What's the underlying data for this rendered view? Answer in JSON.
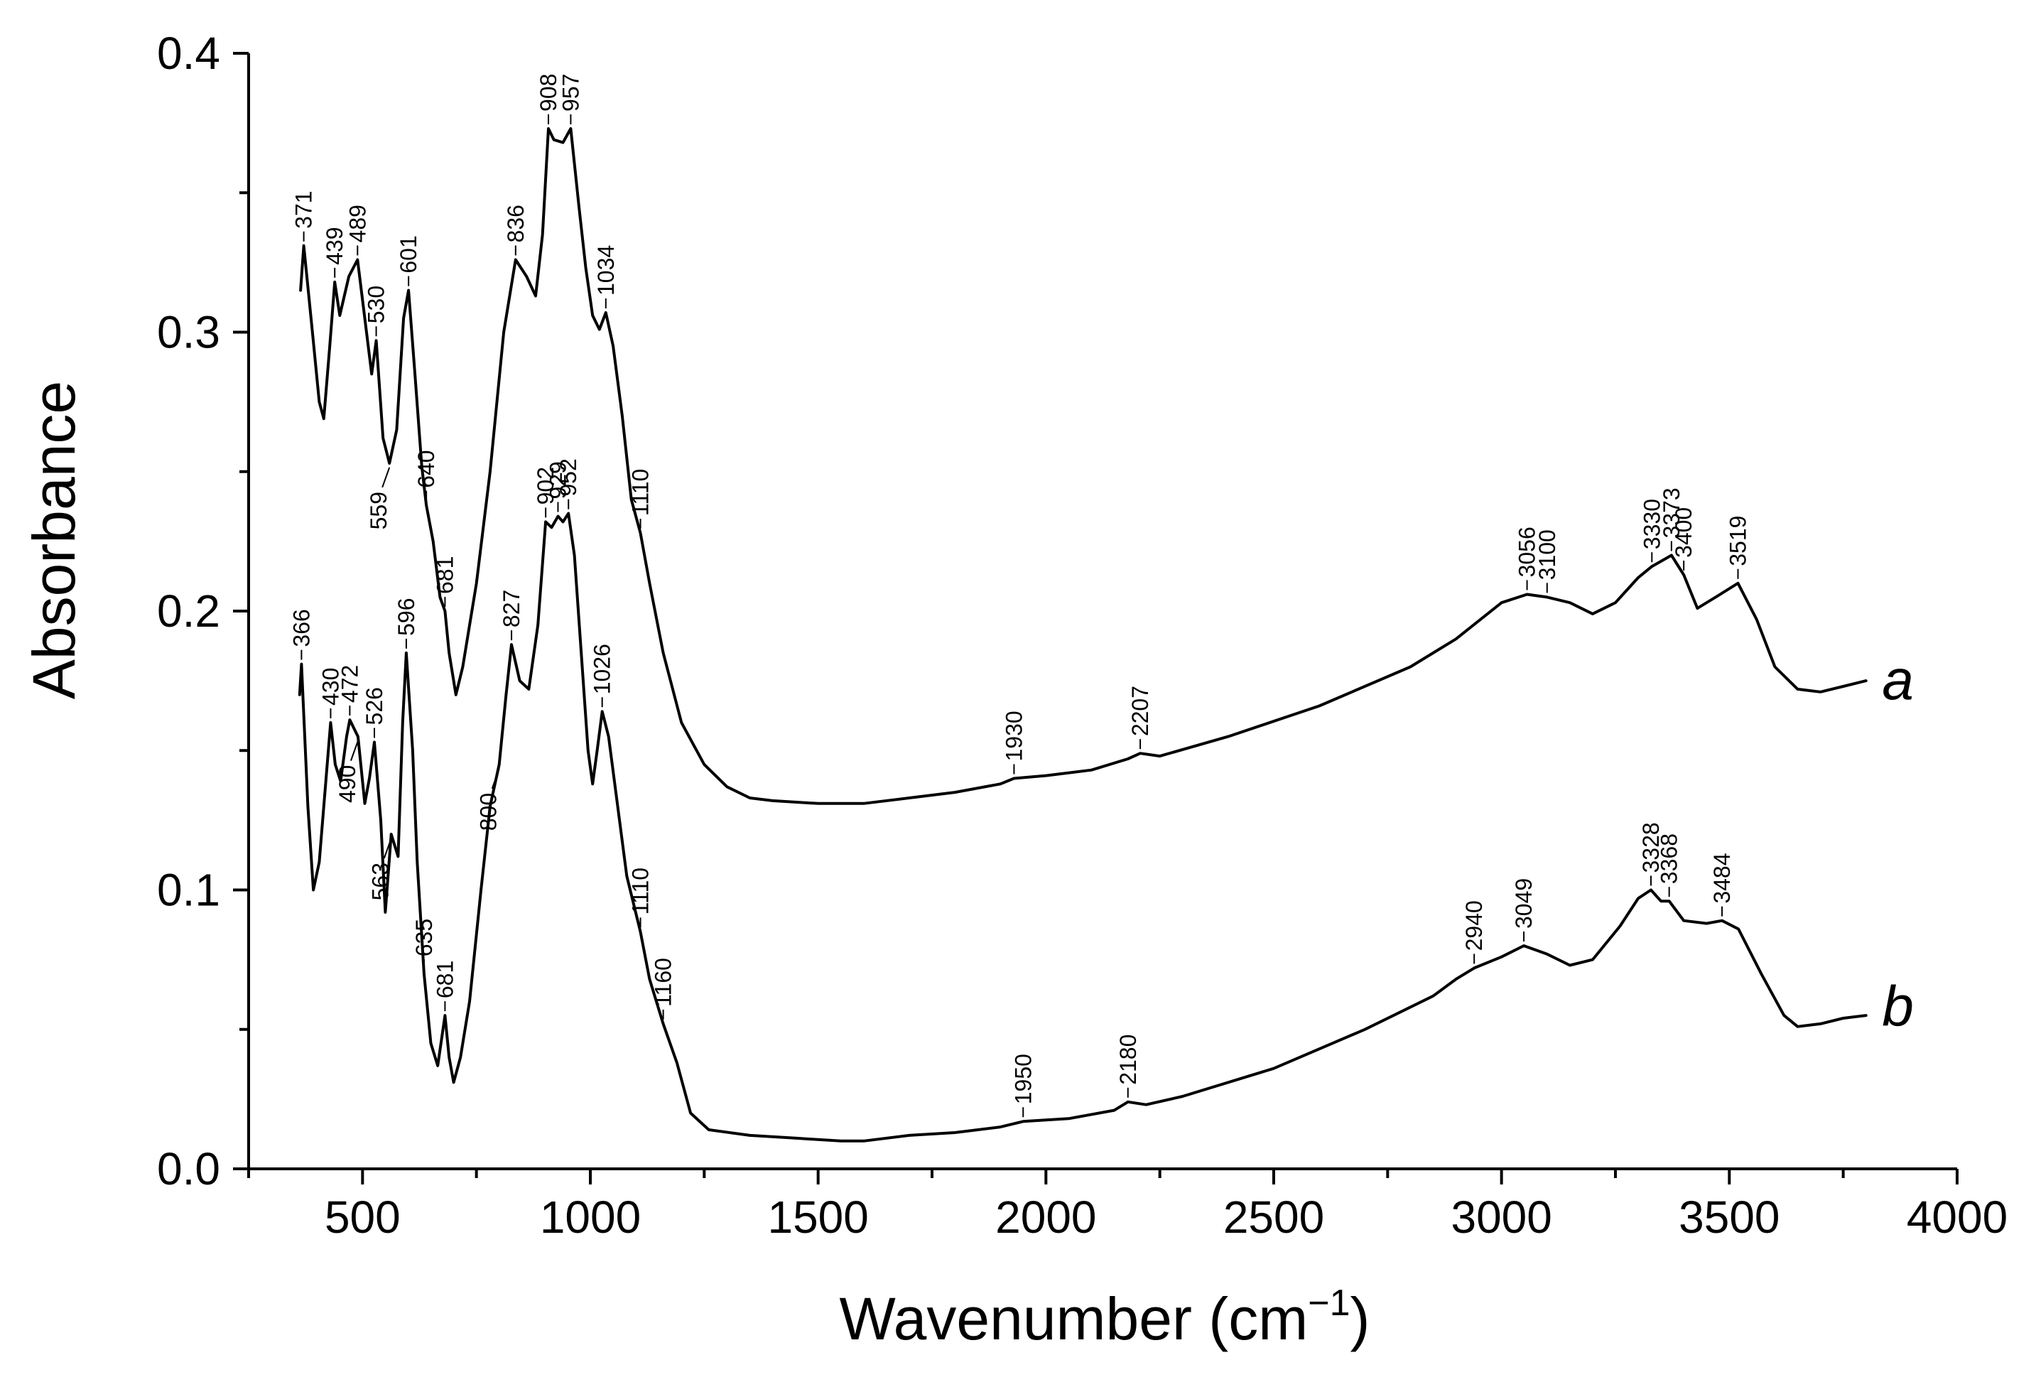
{
  "chart_data": {
    "type": "line",
    "title": "",
    "xlabel": "Wavenumber (cm",
    "xlabel_sup": "−1",
    "xlabel_close": ")",
    "ylabel": "Absorbance",
    "xlim": [
      250,
      4000
    ],
    "ylim": [
      0.0,
      0.4
    ],
    "x_ticks": [
      500,
      1000,
      1500,
      2000,
      2500,
      3000,
      3500,
      4000
    ],
    "x_tick_labels": [
      "500",
      "1000",
      "1500",
      "2000",
      "2500",
      "3000",
      "3500",
      "4000"
    ],
    "x_minor_ticks": [
      250,
      750,
      1250,
      1750,
      2250,
      2750,
      3250,
      3750
    ],
    "y_ticks": [
      0.0,
      0.1,
      0.2,
      0.3,
      0.4
    ],
    "y_tick_labels": [
      "0.0",
      "0.1",
      "0.2",
      "0.3",
      "0.4"
    ],
    "y_minor_ticks": [
      0.05,
      0.15,
      0.25,
      0.35
    ],
    "series": [
      {
        "name": "a",
        "points": [
          [
            364,
            0.315
          ],
          [
            371,
            0.331
          ],
          [
            390,
            0.3
          ],
          [
            405,
            0.275
          ],
          [
            415,
            0.269
          ],
          [
            428,
            0.295
          ],
          [
            439,
            0.318
          ],
          [
            450,
            0.306
          ],
          [
            470,
            0.32
          ],
          [
            489,
            0.326
          ],
          [
            505,
            0.305
          ],
          [
            520,
            0.285
          ],
          [
            530,
            0.297
          ],
          [
            545,
            0.262
          ],
          [
            559,
            0.253
          ],
          [
            575,
            0.265
          ],
          [
            590,
            0.305
          ],
          [
            601,
            0.315
          ],
          [
            615,
            0.285
          ],
          [
            630,
            0.252
          ],
          [
            640,
            0.238
          ],
          [
            655,
            0.225
          ],
          [
            670,
            0.205
          ],
          [
            681,
            0.2
          ],
          [
            690,
            0.185
          ],
          [
            705,
            0.17
          ],
          [
            720,
            0.18
          ],
          [
            750,
            0.21
          ],
          [
            780,
            0.25
          ],
          [
            810,
            0.3
          ],
          [
            836,
            0.326
          ],
          [
            860,
            0.32
          ],
          [
            880,
            0.313
          ],
          [
            895,
            0.335
          ],
          [
            908,
            0.373
          ],
          [
            920,
            0.369
          ],
          [
            940,
            0.368
          ],
          [
            957,
            0.373
          ],
          [
            975,
            0.345
          ],
          [
            990,
            0.323
          ],
          [
            1005,
            0.306
          ],
          [
            1020,
            0.301
          ],
          [
            1034,
            0.307
          ],
          [
            1050,
            0.295
          ],
          [
            1070,
            0.27
          ],
          [
            1090,
            0.24
          ],
          [
            1110,
            0.228
          ],
          [
            1130,
            0.21
          ],
          [
            1160,
            0.185
          ],
          [
            1200,
            0.16
          ],
          [
            1250,
            0.145
          ],
          [
            1300,
            0.137
          ],
          [
            1350,
            0.133
          ],
          [
            1400,
            0.132
          ],
          [
            1500,
            0.131
          ],
          [
            1600,
            0.131
          ],
          [
            1700,
            0.133
          ],
          [
            1800,
            0.135
          ],
          [
            1900,
            0.138
          ],
          [
            1930,
            0.14
          ],
          [
            2000,
            0.141
          ],
          [
            2100,
            0.143
          ],
          [
            2180,
            0.147
          ],
          [
            2207,
            0.149
          ],
          [
            2250,
            0.148
          ],
          [
            2400,
            0.155
          ],
          [
            2600,
            0.166
          ],
          [
            2800,
            0.18
          ],
          [
            2900,
            0.19
          ],
          [
            3000,
            0.203
          ],
          [
            3056,
            0.206
          ],
          [
            3100,
            0.205
          ],
          [
            3150,
            0.203
          ],
          [
            3200,
            0.199
          ],
          [
            3250,
            0.203
          ],
          [
            3300,
            0.212
          ],
          [
            3330,
            0.216
          ],
          [
            3373,
            0.22
          ],
          [
            3400,
            0.213
          ],
          [
            3430,
            0.201
          ],
          [
            3470,
            0.205
          ],
          [
            3519,
            0.21
          ],
          [
            3560,
            0.197
          ],
          [
            3600,
            0.18
          ],
          [
            3650,
            0.172
          ],
          [
            3700,
            0.171
          ],
          [
            3750,
            0.173
          ],
          [
            3800,
            0.175
          ]
        ]
      },
      {
        "name": "b",
        "points": [
          [
            362,
            0.17
          ],
          [
            366,
            0.181
          ],
          [
            380,
            0.13
          ],
          [
            392,
            0.1
          ],
          [
            405,
            0.11
          ],
          [
            420,
            0.14
          ],
          [
            430,
            0.16
          ],
          [
            440,
            0.145
          ],
          [
            452,
            0.139
          ],
          [
            465,
            0.155
          ],
          [
            472,
            0.161
          ],
          [
            490,
            0.155
          ],
          [
            505,
            0.131
          ],
          [
            515,
            0.14
          ],
          [
            526,
            0.153
          ],
          [
            540,
            0.125
          ],
          [
            550,
            0.092
          ],
          [
            563,
            0.12
          ],
          [
            578,
            0.112
          ],
          [
            588,
            0.16
          ],
          [
            596,
            0.185
          ],
          [
            610,
            0.15
          ],
          [
            620,
            0.11
          ],
          [
            635,
            0.07
          ],
          [
            650,
            0.045
          ],
          [
            665,
            0.037
          ],
          [
            681,
            0.055
          ],
          [
            690,
            0.04
          ],
          [
            700,
            0.031
          ],
          [
            715,
            0.04
          ],
          [
            735,
            0.06
          ],
          [
            760,
            0.1
          ],
          [
            780,
            0.13
          ],
          [
            800,
            0.145
          ],
          [
            815,
            0.17
          ],
          [
            827,
            0.188
          ],
          [
            845,
            0.175
          ],
          [
            865,
            0.172
          ],
          [
            885,
            0.195
          ],
          [
            902,
            0.232
          ],
          [
            915,
            0.23
          ],
          [
            929,
            0.234
          ],
          [
            940,
            0.232
          ],
          [
            952,
            0.235
          ],
          [
            965,
            0.22
          ],
          [
            980,
            0.185
          ],
          [
            995,
            0.15
          ],
          [
            1005,
            0.138
          ],
          [
            1015,
            0.15
          ],
          [
            1026,
            0.164
          ],
          [
            1040,
            0.155
          ],
          [
            1060,
            0.13
          ],
          [
            1080,
            0.105
          ],
          [
            1110,
            0.085
          ],
          [
            1130,
            0.068
          ],
          [
            1160,
            0.052
          ],
          [
            1190,
            0.038
          ],
          [
            1220,
            0.02
          ],
          [
            1260,
            0.014
          ],
          [
            1350,
            0.012
          ],
          [
            1450,
            0.011
          ],
          [
            1550,
            0.01
          ],
          [
            1600,
            0.01
          ],
          [
            1700,
            0.012
          ],
          [
            1800,
            0.013
          ],
          [
            1900,
            0.015
          ],
          [
            1950,
            0.017
          ],
          [
            2050,
            0.018
          ],
          [
            2150,
            0.021
          ],
          [
            2180,
            0.024
          ],
          [
            2220,
            0.023
          ],
          [
            2300,
            0.026
          ],
          [
            2500,
            0.036
          ],
          [
            2700,
            0.05
          ],
          [
            2850,
            0.062
          ],
          [
            2900,
            0.068
          ],
          [
            2940,
            0.072
          ],
          [
            3000,
            0.076
          ],
          [
            3049,
            0.08
          ],
          [
            3100,
            0.077
          ],
          [
            3150,
            0.073
          ],
          [
            3200,
            0.075
          ],
          [
            3260,
            0.087
          ],
          [
            3300,
            0.097
          ],
          [
            3328,
            0.1
          ],
          [
            3350,
            0.096
          ],
          [
            3368,
            0.096
          ],
          [
            3400,
            0.089
          ],
          [
            3450,
            0.088
          ],
          [
            3484,
            0.089
          ],
          [
            3520,
            0.086
          ],
          [
            3570,
            0.07
          ],
          [
            3620,
            0.055
          ],
          [
            3650,
            0.051
          ],
          [
            3700,
            0.052
          ],
          [
            3750,
            0.054
          ],
          [
            3800,
            0.055
          ]
        ]
      }
    ],
    "series_labels": [
      {
        "text": "a",
        "x": 3870,
        "y": 0.175
      },
      {
        "text": "b",
        "x": 3870,
        "y": 0.058
      }
    ],
    "annotations": [
      {
        "text": "371",
        "x": 371,
        "y": 0.331
      },
      {
        "text": "439",
        "x": 439,
        "y": 0.318
      },
      {
        "text": "489",
        "x": 489,
        "y": 0.326
      },
      {
        "text": "530",
        "x": 530,
        "y": 0.297
      },
      {
        "text": "601",
        "x": 601,
        "y": 0.315
      },
      {
        "text": "559",
        "x": 559,
        "y": 0.253,
        "below": true
      },
      {
        "text": "640",
        "x": 640,
        "y": 0.238
      },
      {
        "text": "681",
        "x": 681,
        "y": 0.2
      },
      {
        "text": "836",
        "x": 836,
        "y": 0.326
      },
      {
        "text": "908",
        "x": 908,
        "y": 0.373
      },
      {
        "text": "957",
        "x": 957,
        "y": 0.373
      },
      {
        "text": "1034",
        "x": 1034,
        "y": 0.307
      },
      {
        "text": "1110",
        "x": 1110,
        "y": 0.228
      },
      {
        "text": "1930",
        "x": 1930,
        "y": 0.14
      },
      {
        "text": "2207",
        "x": 2207,
        "y": 0.149
      },
      {
        "text": "3056",
        "x": 3056,
        "y": 0.206
      },
      {
        "text": "3100",
        "x": 3100,
        "y": 0.205
      },
      {
        "text": "3330",
        "x": 3330,
        "y": 0.216
      },
      {
        "text": "3373",
        "x": 3373,
        "y": 0.22
      },
      {
        "text": "3400",
        "x": 3400,
        "y": 0.213
      },
      {
        "text": "3519",
        "x": 3519,
        "y": 0.21
      },
      {
        "text": "366",
        "x": 366,
        "y": 0.181
      },
      {
        "text": "430",
        "x": 430,
        "y": 0.16
      },
      {
        "text": "472",
        "x": 472,
        "y": 0.161
      },
      {
        "text": "526",
        "x": 526,
        "y": 0.153
      },
      {
        "text": "490",
        "x": 490,
        "y": 0.155,
        "below": true
      },
      {
        "text": "596",
        "x": 596,
        "y": 0.185
      },
      {
        "text": "563",
        "x": 563,
        "y": 0.12,
        "below": true
      },
      {
        "text": "635",
        "x": 635,
        "y": 0.07
      },
      {
        "text": "681",
        "x": 681,
        "y": 0.055
      },
      {
        "text": "827",
        "x": 827,
        "y": 0.188
      },
      {
        "text": "800",
        "x": 800,
        "y": 0.145,
        "below": true
      },
      {
        "text": "902",
        "x": 902,
        "y": 0.232
      },
      {
        "text": "929",
        "x": 929,
        "y": 0.234
      },
      {
        "text": "952",
        "x": 952,
        "y": 0.235
      },
      {
        "text": "1026",
        "x": 1026,
        "y": 0.164
      },
      {
        "text": "1110",
        "x": 1110,
        "y": 0.085
      },
      {
        "text": "1160",
        "x": 1160,
        "y": 0.052
      },
      {
        "text": "1950",
        "x": 1950,
        "y": 0.017
      },
      {
        "text": "2180",
        "x": 2180,
        "y": 0.024
      },
      {
        "text": "2940",
        "x": 2940,
        "y": 0.072
      },
      {
        "text": "3049",
        "x": 3049,
        "y": 0.08
      },
      {
        "text": "3328",
        "x": 3328,
        "y": 0.1
      },
      {
        "text": "3368",
        "x": 3368,
        "y": 0.096
      },
      {
        "text": "3484",
        "x": 3484,
        "y": 0.089
      }
    ],
    "grid": false,
    "line_color": "#000000"
  }
}
